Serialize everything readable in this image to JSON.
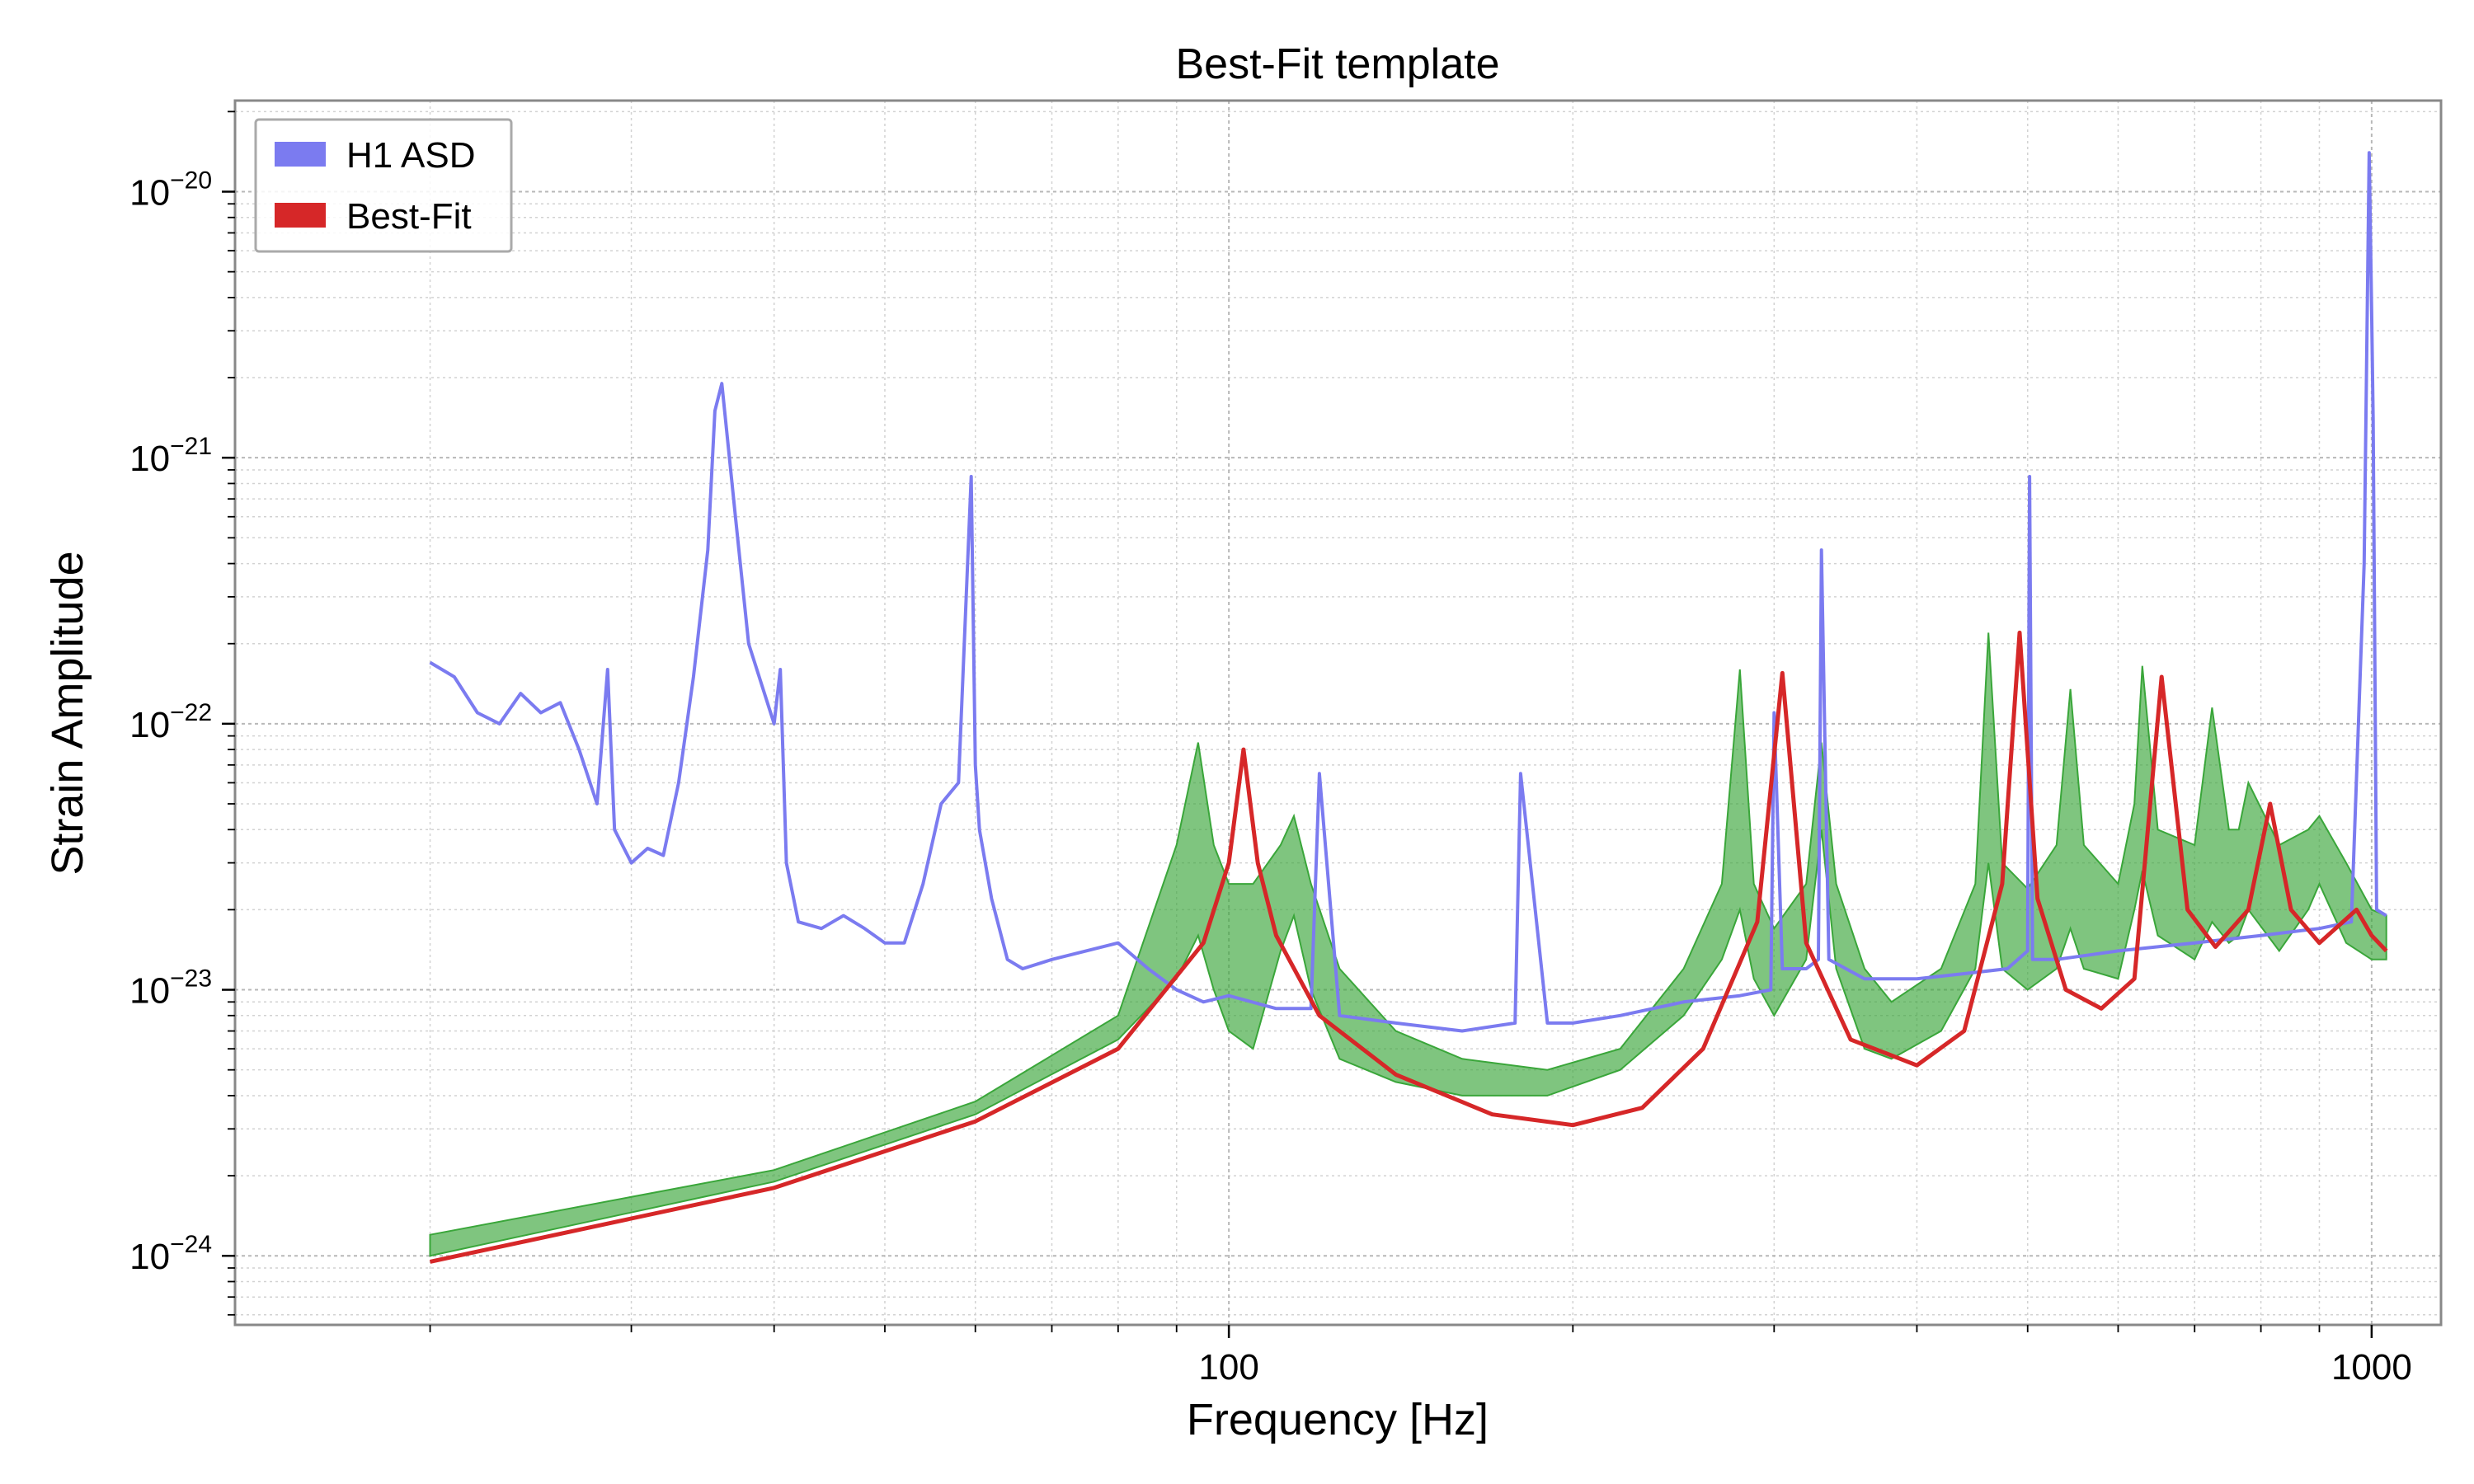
{
  "chart_data": {
    "type": "line",
    "title": "Best-Fit template",
    "xlabel": "Frequency [Hz]",
    "ylabel": "Strain Amplitude",
    "x_scale": "log",
    "y_scale": "log",
    "xlim": [
      13.5,
      1150
    ],
    "ylim": [
      5.5e-25,
      2.2e-20
    ],
    "x_ticks": [
      {
        "value": 100,
        "label": "100"
      },
      {
        "value": 1000,
        "label": "1000"
      }
    ],
    "y_ticks": [
      {
        "value": 1e-24,
        "base": "10",
        "exp": "−24"
      },
      {
        "value": 1e-23,
        "base": "10",
        "exp": "−23"
      },
      {
        "value": 1e-22,
        "base": "10",
        "exp": "−22"
      },
      {
        "value": 1e-21,
        "base": "10",
        "exp": "−21"
      },
      {
        "value": 1e-20,
        "base": "10",
        "exp": "−20"
      }
    ],
    "grid": true,
    "legend_position": "top-left",
    "colors": {
      "asd": "#7b7bf0",
      "asd_dense": "#3f5fd6",
      "best_fit": "#d62728",
      "band": "#3aa63a"
    },
    "series": [
      {
        "name": "H1 ASD",
        "kind": "line",
        "x": [
          20,
          21,
          22,
          23,
          24,
          25,
          26,
          27,
          28,
          28.6,
          29,
          30,
          31,
          32,
          33,
          34,
          35,
          35.5,
          36,
          37,
          38,
          40,
          40.5,
          41,
          42,
          44,
          46,
          48,
          50,
          52,
          54,
          56,
          58,
          59.5,
          60,
          60.5,
          62,
          64,
          66,
          70,
          75,
          80,
          85,
          90,
          95,
          100,
          110,
          118,
          120,
          125,
          140,
          160,
          178,
          180,
          190,
          200,
          220,
          250,
          280,
          298,
          300,
          305,
          320,
          328,
          330,
          335,
          360,
          400,
          440,
          480,
          500,
          502,
          505,
          530,
          600,
          700,
          800,
          900,
          960,
          985,
          995,
          1000,
          1003,
          1010,
          1030
        ],
        "y": [
          1.7e-22,
          1.5e-22,
          1.1e-22,
          1e-22,
          1.3e-22,
          1.1e-22,
          1.2e-22,
          8e-23,
          5e-23,
          1.6e-22,
          4e-23,
          3e-23,
          3.4e-23,
          3.2e-23,
          6e-23,
          1.5e-22,
          4.5e-22,
          1.5e-21,
          1.9e-21,
          6e-22,
          2e-22,
          1e-22,
          1.6e-22,
          3e-23,
          1.8e-23,
          1.7e-23,
          1.9e-23,
          1.7e-23,
          1.5e-23,
          1.5e-23,
          2.5e-23,
          5e-23,
          6e-23,
          8.5e-22,
          7e-23,
          4e-23,
          2.2e-23,
          1.3e-23,
          1.2e-23,
          1.3e-23,
          1.4e-23,
          1.5e-23,
          1.2e-23,
          1e-23,
          9e-24,
          9.5e-24,
          8.5e-24,
          8.5e-24,
          6.5e-23,
          8e-24,
          7.5e-24,
          7e-24,
          7.5e-24,
          6.5e-23,
          7.5e-24,
          7.5e-24,
          8e-24,
          9e-24,
          9.5e-24,
          1e-23,
          1.1e-22,
          1.2e-23,
          1.2e-23,
          1.3e-23,
          4.5e-22,
          1.3e-23,
          1.1e-23,
          1.1e-23,
          1.15e-23,
          1.2e-23,
          1.4e-23,
          8.5e-22,
          1.3e-23,
          1.3e-23,
          1.4e-23,
          1.5e-23,
          1.6e-23,
          1.7e-23,
          1.8e-23,
          4e-22,
          1.4e-20,
          3.5e-21,
          1.4e-21,
          2e-23,
          1.9e-23
        ]
      },
      {
        "name": "Best-Fit",
        "kind": "line",
        "x": [
          20,
          40,
          60,
          80,
          95,
          100,
          103,
          106,
          110,
          120,
          140,
          170,
          200,
          230,
          260,
          290,
          305,
          320,
          350,
          400,
          440,
          475,
          492,
          510,
          540,
          580,
          620,
          655,
          690,
          730,
          780,
          815,
          850,
          900,
          970,
          1000,
          1030
        ],
        "y": [
          9.5e-25,
          1.8e-24,
          3.2e-24,
          6e-24,
          1.5e-23,
          3e-23,
          8e-23,
          3e-23,
          1.6e-23,
          8e-24,
          4.8e-24,
          3.4e-24,
          3.1e-24,
          3.6e-24,
          6e-24,
          1.8e-23,
          1.55e-22,
          1.5e-23,
          6.5e-24,
          5.2e-24,
          7e-24,
          2.5e-23,
          2.2e-22,
          2.2e-23,
          1e-23,
          8.5e-24,
          1.1e-23,
          1.5e-22,
          2e-23,
          1.45e-23,
          2e-23,
          5e-23,
          2e-23,
          1.5e-23,
          2e-23,
          1.6e-23,
          1.4e-23
        ]
      },
      {
        "name": "",
        "kind": "band",
        "x": [
          20,
          40,
          60,
          80,
          90,
          94,
          97,
          100,
          105,
          111,
          114,
          118,
          125,
          140,
          160,
          190,
          220,
          250,
          270,
          280,
          288,
          300,
          320,
          330,
          340,
          360,
          380,
          420,
          450,
          462,
          475,
          500,
          530,
          545,
          560,
          600,
          620,
          630,
          650,
          700,
          725,
          750,
          765,
          780,
          830,
          880,
          900,
          950,
          1000,
          1030
        ],
        "lower": [
          1e-24,
          1.9e-24,
          3.4e-24,
          6.5e-24,
          1.1e-23,
          1.6e-23,
          1e-23,
          7e-24,
          6e-24,
          1.4e-23,
          1.9e-23,
          1e-23,
          5.5e-24,
          4.5e-24,
          4e-24,
          4e-24,
          5e-24,
          8e-24,
          1.3e-23,
          2e-23,
          1.1e-23,
          8e-24,
          1.3e-23,
          4e-23,
          1.2e-23,
          6e-24,
          5.5e-24,
          7e-24,
          1.2e-23,
          3e-23,
          1.2e-23,
          1e-23,
          1.2e-23,
          1.7e-23,
          1.2e-23,
          1.1e-23,
          2e-23,
          2.8e-23,
          1.6e-23,
          1.3e-23,
          1.8e-23,
          1.5e-23,
          1.6e-23,
          2e-23,
          1.4e-23,
          2e-23,
          2.5e-23,
          1.5e-23,
          1.3e-23,
          1.3e-23
        ],
        "upper": [
          1.2e-24,
          2.1e-24,
          3.8e-24,
          8e-24,
          3.5e-23,
          8.5e-23,
          3.5e-23,
          2.5e-23,
          2.5e-23,
          3.5e-23,
          4.5e-23,
          2.5e-23,
          1.2e-23,
          7e-24,
          5.5e-24,
          5e-24,
          6e-24,
          1.2e-23,
          2.5e-23,
          1.6e-22,
          2.5e-23,
          1.7e-23,
          2.5e-23,
          8.5e-23,
          2.5e-23,
          1.2e-23,
          9e-24,
          1.2e-23,
          2.5e-23,
          2.2e-22,
          3e-23,
          2.4e-23,
          3.5e-23,
          1.35e-22,
          3.5e-23,
          2.5e-23,
          5e-23,
          1.65e-22,
          4e-23,
          3.5e-23,
          1.15e-22,
          4e-23,
          4e-23,
          6e-23,
          3.5e-23,
          4e-23,
          4.5e-23,
          3e-23,
          2e-23,
          1.9e-23
        ]
      }
    ],
    "legend": [
      {
        "label": "H1 ASD",
        "color": "#7b7bf0"
      },
      {
        "label": "Best-Fit",
        "color": "#d62728"
      }
    ]
  }
}
